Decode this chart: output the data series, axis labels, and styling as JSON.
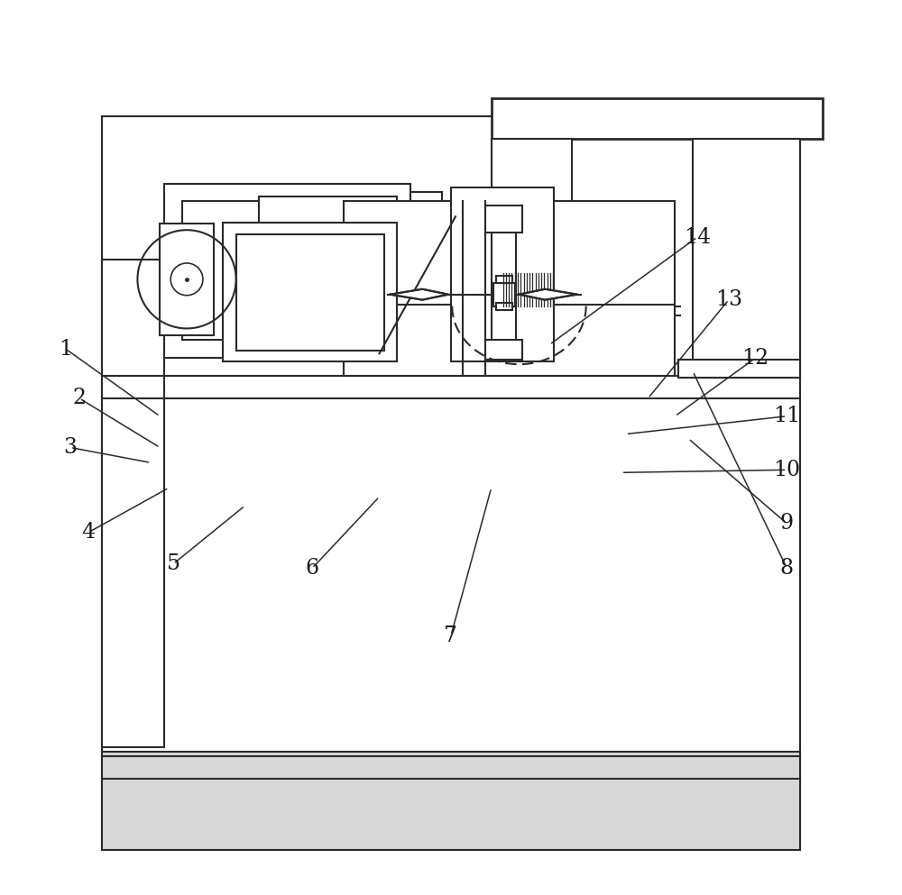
{
  "line_color": "#2a2a2a",
  "lw": 1.5,
  "fig_w": 10.0,
  "fig_h": 9.93,
  "dpi": 100,
  "leaders": [
    [
      "1",
      [
        0.07,
        0.61
      ],
      [
        0.175,
        0.535
      ]
    ],
    [
      "2",
      [
        0.085,
        0.555
      ],
      [
        0.175,
        0.5
      ]
    ],
    [
      "3",
      [
        0.075,
        0.5
      ],
      [
        0.165,
        0.483
      ]
    ],
    [
      "4",
      [
        0.095,
        0.405
      ],
      [
        0.185,
        0.455
      ]
    ],
    [
      "5",
      [
        0.19,
        0.37
      ],
      [
        0.27,
        0.435
      ]
    ],
    [
      "6",
      [
        0.345,
        0.365
      ],
      [
        0.42,
        0.445
      ]
    ],
    [
      "7",
      [
        0.5,
        0.29
      ],
      [
        0.545,
        0.455
      ]
    ],
    [
      "8",
      [
        0.875,
        0.365
      ],
      [
        0.77,
        0.585
      ]
    ],
    [
      "9",
      [
        0.875,
        0.415
      ],
      [
        0.765,
        0.51
      ]
    ],
    [
      "10",
      [
        0.875,
        0.475
      ],
      [
        0.69,
        0.472
      ]
    ],
    [
      "11",
      [
        0.875,
        0.535
      ],
      [
        0.695,
        0.515
      ]
    ],
    [
      "12",
      [
        0.84,
        0.6
      ],
      [
        0.75,
        0.535
      ]
    ],
    [
      "13",
      [
        0.81,
        0.665
      ],
      [
        0.72,
        0.555
      ]
    ],
    [
      "14",
      [
        0.775,
        0.735
      ],
      [
        0.61,
        0.615
      ]
    ]
  ]
}
